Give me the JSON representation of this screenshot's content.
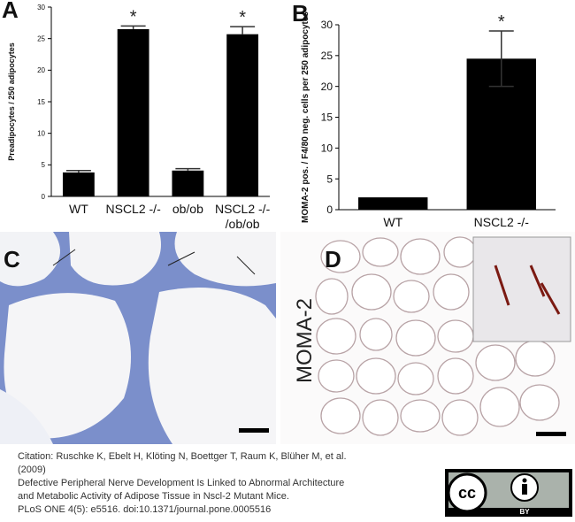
{
  "chart_data": [
    {
      "type": "bar",
      "panel": "A",
      "ylabel": "Preadipocytes / 250 adipocytes",
      "categories": [
        "WT",
        "NSCL2 -/-",
        "ob/ob",
        "NSCL2 -/- /ob/ob"
      ],
      "values": [
        3.8,
        26.5,
        4.1,
        25.7
      ],
      "errors": [
        0.3,
        0.5,
        0.3,
        1.2
      ],
      "color": "#000000",
      "ylim": [
        0,
        30
      ],
      "yticks": [
        0,
        5,
        10,
        15,
        20,
        25,
        30
      ],
      "annotations": [
        {
          "text": "*",
          "category": "NSCL2 -/-"
        },
        {
          "text": "*",
          "category": "NSCL2 -/- /ob/ob"
        }
      ]
    },
    {
      "type": "bar",
      "panel": "B",
      "ylabel": "MOMA-2 pos. / F4/80 neg. cells per 250 adipocytes",
      "categories": [
        "WT",
        "NSCL2 -/-"
      ],
      "values": [
        2,
        24.5
      ],
      "errors": [
        0,
        4.5
      ],
      "color": "#000000",
      "ylim": [
        0,
        30
      ],
      "yticks": [
        0,
        5,
        10,
        15,
        20,
        25,
        30
      ],
      "annotations": [
        {
          "text": "*",
          "category": "NSCL2 -/-"
        }
      ]
    }
  ],
  "images": {
    "c": {
      "panel": "C"
    },
    "d": {
      "panel": "D",
      "label": "MOMA-2"
    }
  },
  "citation": [
    "Citation: Ruschke K, Ebelt H, Klöting N, Boettger T, Raum K, Blüher M, et al.",
    "(2009)",
    "Defective Peripheral Nerve Development Is Linked to Abnormal Architecture",
    "and Metabolic Activity of Adipose Tissue in Nscl-2 Mutant Mice.",
    "PLoS ONE 4(5): e5516. doi:10.1371/journal.pone.0005516"
  ],
  "license": {
    "badge": "cc",
    "text": "BY"
  }
}
